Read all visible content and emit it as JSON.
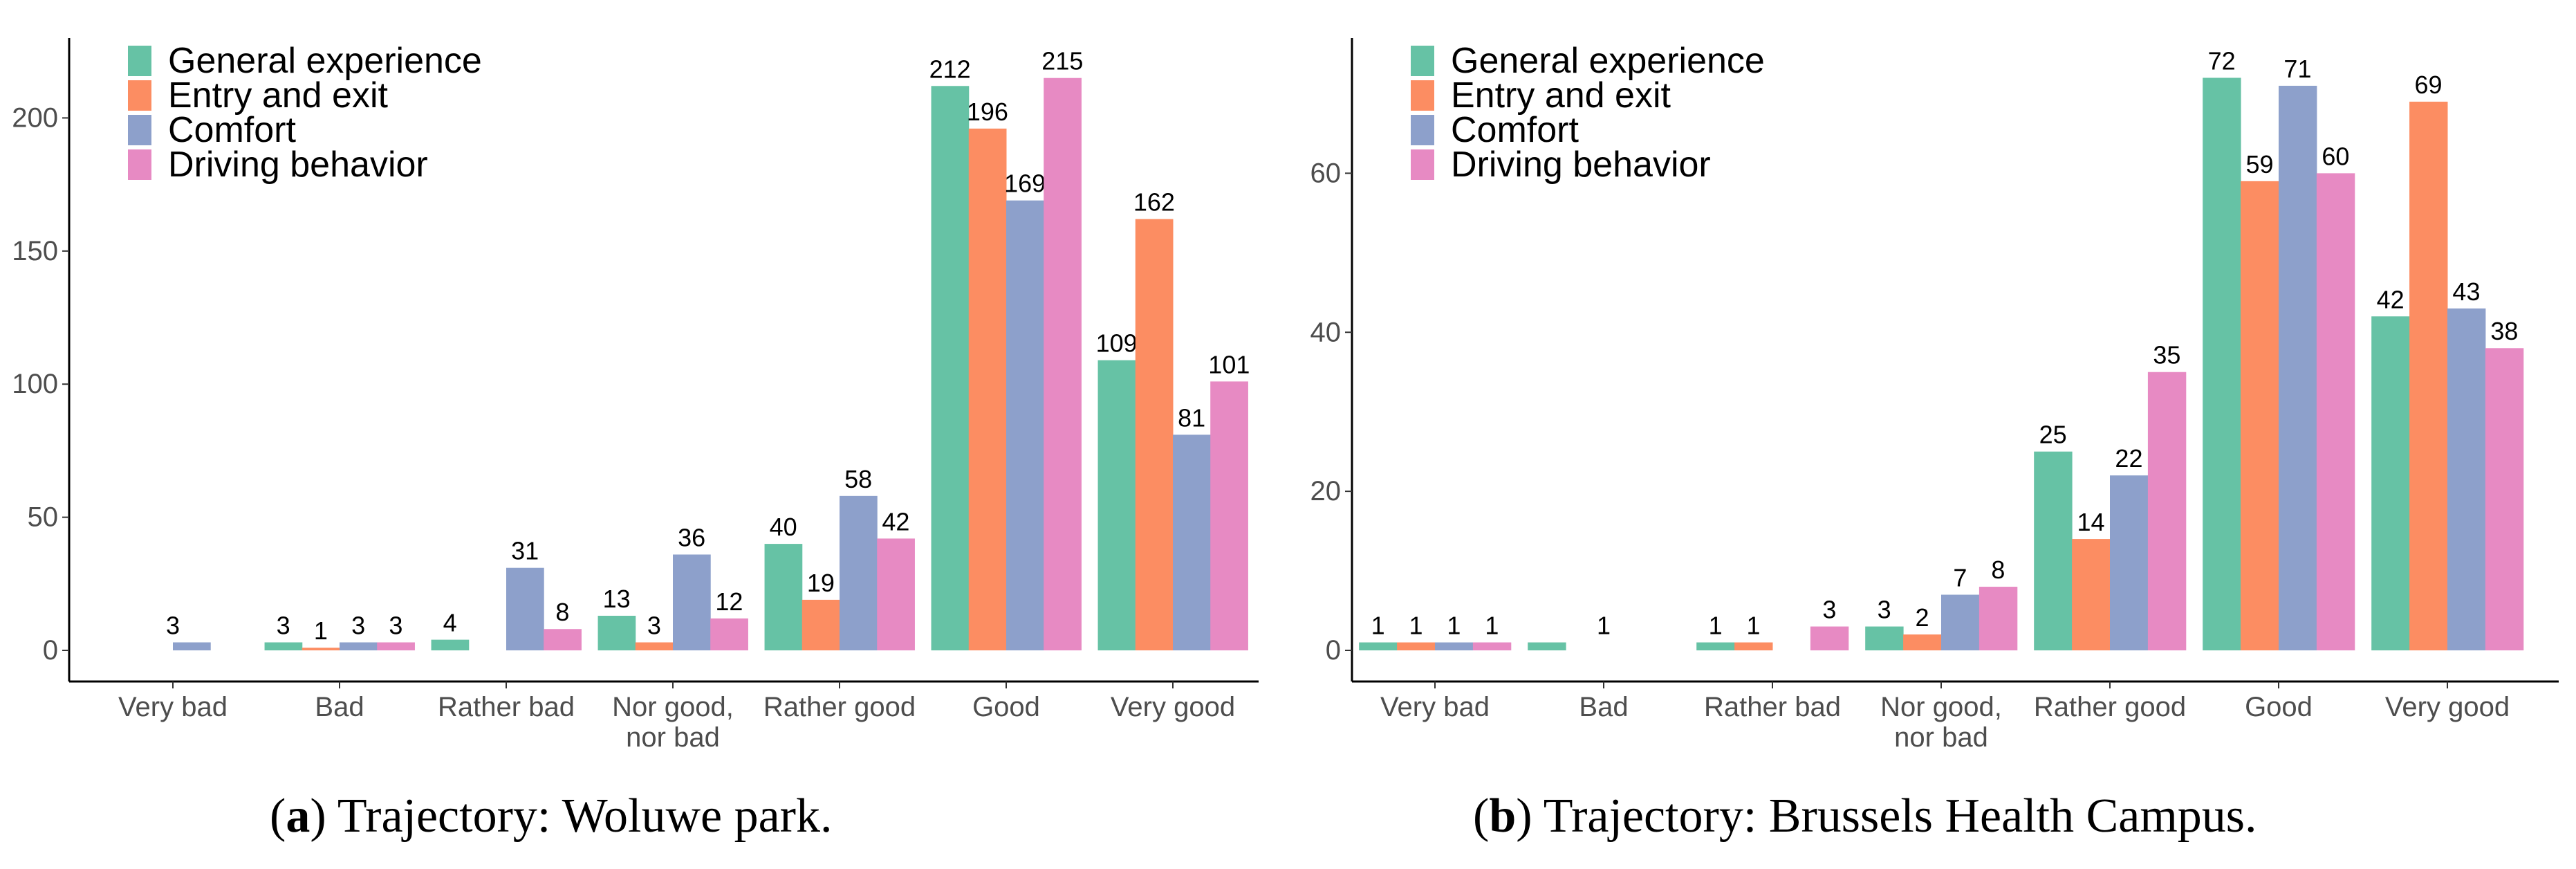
{
  "captions": [
    {
      "letter": "a",
      "text": "Trajectory: Woluwe park."
    },
    {
      "letter": "b",
      "text": "Trajectory: Brussels Health Campus."
    }
  ],
  "chart_data": [
    {
      "type": "bar",
      "title": "",
      "xlabel": "",
      "ylabel": "",
      "categories": [
        "Very bad",
        "Bad",
        "Rather bad",
        "Nor good,\nnor bad",
        "Rather good",
        "Good",
        "Very good"
      ],
      "ylim": [
        0,
        230
      ],
      "yticks": [
        0,
        50,
        100,
        150,
        200
      ],
      "legend": "top-left",
      "series": [
        {
          "name": "General experience",
          "color": "#66c2a5",
          "values": [
            0,
            3,
            4,
            13,
            40,
            212,
            109
          ]
        },
        {
          "name": "Entry and exit",
          "color": "#fc8d62",
          "values": [
            0,
            1,
            0,
            3,
            19,
            196,
            162
          ]
        },
        {
          "name": "Comfort",
          "color": "#8da0cb",
          "values": [
            3,
            3,
            31,
            36,
            58,
            169,
            81
          ]
        },
        {
          "name": "Driving behavior",
          "color": "#e78ac3",
          "values": [
            0,
            3,
            8,
            12,
            42,
            215,
            101
          ]
        }
      ],
      "value_labels": [
        [
          null,
          3,
          4,
          13,
          40,
          212,
          109
        ],
        [
          null,
          1,
          null,
          3,
          19,
          196,
          162
        ],
        [
          3,
          3,
          31,
          36,
          58,
          169,
          81
        ],
        [
          null,
          3,
          8,
          12,
          42,
          215,
          101
        ]
      ],
      "merged_labels": [
        {
          "category": 0,
          "value": 3
        }
      ]
    },
    {
      "type": "bar",
      "title": "",
      "xlabel": "",
      "ylabel": "",
      "categories": [
        "Very bad",
        "Bad",
        "Rather bad",
        "Nor good,\nnor bad",
        "Rather good",
        "Good",
        "Very good"
      ],
      "ylim": [
        0,
        77
      ],
      "yticks": [
        0,
        20,
        40,
        60
      ],
      "legend": "top-left",
      "series": [
        {
          "name": "General experience",
          "color": "#66c2a5",
          "values": [
            1,
            1,
            1,
            3,
            25,
            72,
            42
          ]
        },
        {
          "name": "Entry and exit",
          "color": "#fc8d62",
          "values": [
            1,
            0,
            1,
            2,
            14,
            59,
            69
          ]
        },
        {
          "name": "Comfort",
          "color": "#8da0cb",
          "values": [
            1,
            0,
            0,
            7,
            22,
            71,
            43
          ]
        },
        {
          "name": "Driving behavior",
          "color": "#e78ac3",
          "values": [
            1,
            0,
            3,
            8,
            35,
            60,
            38
          ]
        }
      ],
      "value_labels": [
        [
          1,
          null,
          1,
          3,
          25,
          72,
          42
        ],
        [
          1,
          null,
          1,
          2,
          14,
          59,
          69
        ],
        [
          1,
          null,
          null,
          7,
          22,
          71,
          43
        ],
        [
          1,
          null,
          3,
          8,
          35,
          60,
          38
        ]
      ],
      "merged_labels": [
        {
          "category": 1,
          "value": 1
        }
      ]
    }
  ]
}
